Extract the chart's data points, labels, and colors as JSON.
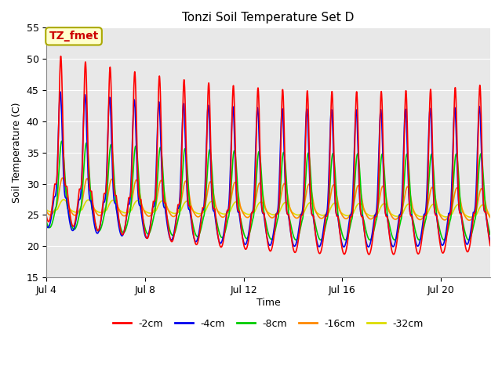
{
  "title": "Tonzi Soil Temperature Set D",
  "xlabel": "Time",
  "ylabel": "Soil Temperature (C)",
  "ylim": [
    15,
    55
  ],
  "xlim_days": [
    4,
    22
  ],
  "x_ticks_labels": [
    "Jul 4",
    "Jul 8",
    "Jul 12",
    "Jul 16",
    "Jul 20"
  ],
  "x_ticks_pos": [
    4,
    8,
    12,
    16,
    20
  ],
  "plot_bg": "#e8e8e8",
  "annotation_text": "TZ_fmet",
  "annotation_bg": "#ffffcc",
  "annotation_border": "#aaa800",
  "annotation_text_color": "#cc0000",
  "lines": {
    "-2cm": {
      "color": "#ff0000",
      "lw": 1.2
    },
    "-4cm": {
      "color": "#0000ee",
      "lw": 1.2
    },
    "-8cm": {
      "color": "#00cc00",
      "lw": 1.2
    },
    "-16cm": {
      "color": "#ff8800",
      "lw": 1.2
    },
    "-32cm": {
      "color": "#dddd00",
      "lw": 1.2
    }
  },
  "grid_color": "#ffffff",
  "grid_lw": 0.8,
  "yticks": [
    15,
    20,
    25,
    30,
    35,
    40,
    45,
    50,
    55
  ]
}
